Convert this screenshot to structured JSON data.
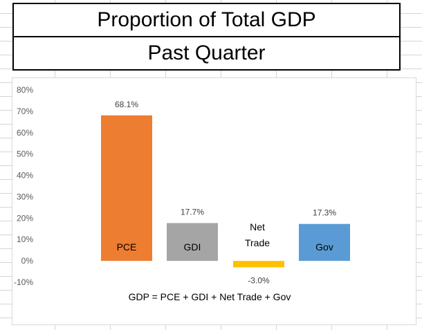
{
  "header": {
    "title": "Proportion of Total GDP",
    "subtitle": "Past Quarter"
  },
  "chart_data": {
    "type": "bar",
    "categories": [
      "PCE",
      "GDI",
      "Net Trade",
      "Gov"
    ],
    "category_label_lines": [
      [
        "PCE"
      ],
      [
        "GDI"
      ],
      [
        "Net",
        "Trade"
      ],
      [
        "Gov"
      ]
    ],
    "values": [
      68.1,
      17.7,
      -3.0,
      17.3
    ],
    "data_labels": [
      "68.1%",
      "17.7%",
      "-3.0%",
      "17.3%"
    ],
    "colors": [
      "#ED7D31",
      "#A5A5A5",
      "#FFC000",
      "#5B9BD5"
    ],
    "ylim": [
      -10,
      80
    ],
    "yticks": [
      -10,
      0,
      10,
      20,
      30,
      40,
      50,
      60,
      70,
      80
    ],
    "ytick_labels": [
      "-10%",
      "0%",
      "10%",
      "20%",
      "30%",
      "40%",
      "50%",
      "60%",
      "70%",
      "80%"
    ],
    "gridlines": false,
    "annotation": "GDP = PCE + GDI + Net Trade + Gov"
  }
}
